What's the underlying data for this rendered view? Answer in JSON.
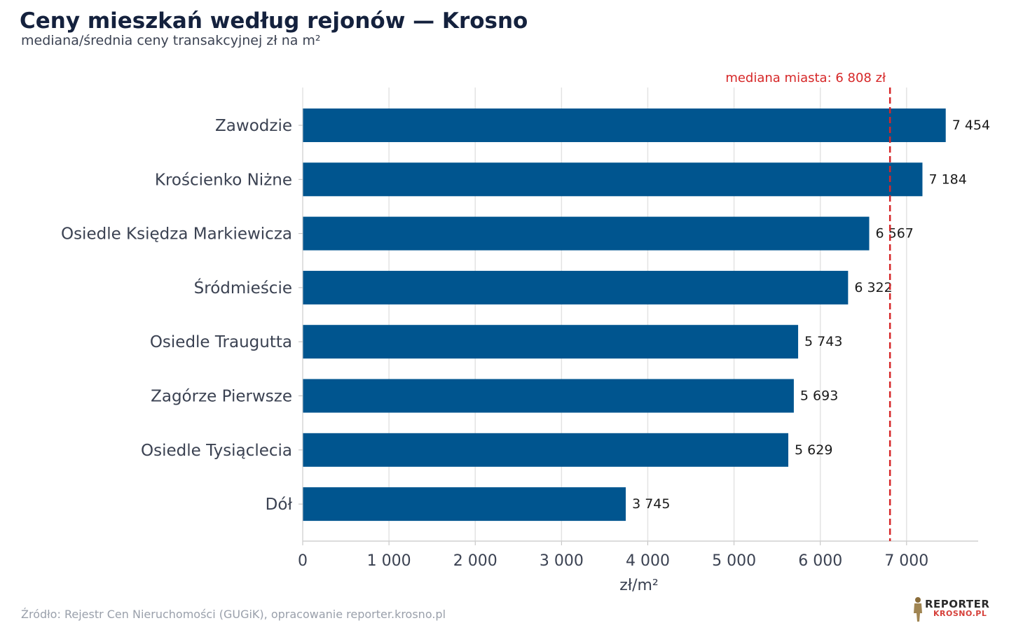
{
  "header": {
    "title": "Ceny mieszkań według rejonów — Krosno",
    "subtitle": "mediana/średnia ceny transakcyjnej zł na m²"
  },
  "footer": {
    "source": "Źródło: Rejestr Cen Nieruchomości (GUGiK), opracowanie reporter.krosno.pl",
    "logo_top": "REPORTER",
    "logo_bottom": "KROSNO.PL"
  },
  "colors": {
    "bar": "#00558f",
    "reference_line": "#d62728",
    "grid": "#e3e3e3",
    "text": "#3b4252"
  },
  "chart_data": {
    "type": "bar",
    "orientation": "horizontal",
    "categories": [
      "Zawodzie",
      "Krościenko Niżne",
      "Osiedle Księdza Markiewicza",
      "Śródmieście",
      "Osiedle Traugutta",
      "Zagórze Pierwsze",
      "Osiedle Tysiąclecia",
      "Dół"
    ],
    "values": [
      7454,
      7184,
      6567,
      6322,
      5743,
      5693,
      5629,
      3745
    ],
    "value_labels": [
      "7 454",
      "7 184",
      "6 567",
      "6 322",
      "5 743",
      "5 693",
      "5 629",
      "3 745"
    ],
    "title": "Ceny mieszkań według rejonów — Krosno",
    "subtitle": "mediana/średnia ceny transakcyjnej zł na m²",
    "xlabel": "zł/m²",
    "ylabel": "",
    "xlim": [
      0,
      7830
    ],
    "xticks": [
      0,
      1000,
      2000,
      3000,
      4000,
      5000,
      6000,
      7000
    ],
    "xtick_labels": [
      "0",
      "1 000",
      "2 000",
      "3 000",
      "4 000",
      "5 000",
      "6 000",
      "7 000"
    ],
    "grid": "vertical",
    "reference_line": {
      "value": 6808,
      "label": "mediana miasta: 6 808 zł"
    }
  }
}
